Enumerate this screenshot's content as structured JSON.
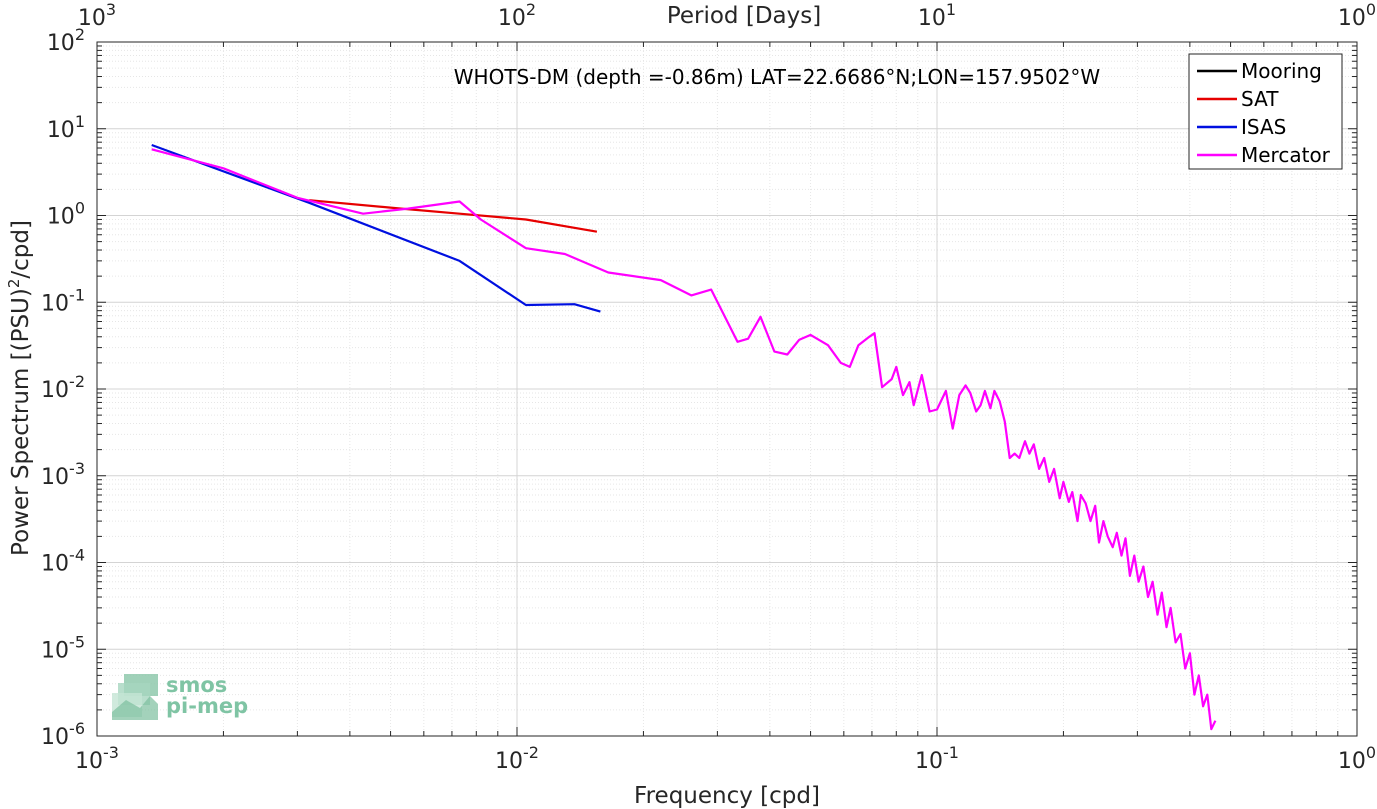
{
  "chart_data": {
    "type": "line",
    "title": "WHOTS-DM (depth =-0.86m) LAT=22.6686°N;LON=157.9502°W",
    "xlabel": "Frequency [cpd]",
    "ylabel": "Power Spectrum [(PSU)",
    "ylabel_sup": "2",
    "ylabel_tail": "/cpd]",
    "top_xlabel": "Period [Days]",
    "xscale": "log",
    "yscale": "log",
    "xlim": [
      0.001,
      1
    ],
    "ylim": [
      1e-06,
      100
    ],
    "grid": true,
    "legend_position": "top-right",
    "x_ticks": [
      {
        "value": 0.001,
        "base": "10",
        "exp": "-3"
      },
      {
        "value": 0.01,
        "base": "10",
        "exp": "-2"
      },
      {
        "value": 0.1,
        "base": "10",
        "exp": "-1"
      },
      {
        "value": 1,
        "base": "10",
        "exp": "0"
      }
    ],
    "y_ticks": [
      {
        "value": 1e-06,
        "base": "10",
        "exp": "-6"
      },
      {
        "value": 1e-05,
        "base": "10",
        "exp": "-5"
      },
      {
        "value": 0.0001,
        "base": "10",
        "exp": "-4"
      },
      {
        "value": 0.001,
        "base": "10",
        "exp": "-3"
      },
      {
        "value": 0.01,
        "base": "10",
        "exp": "-2"
      },
      {
        "value": 0.1,
        "base": "10",
        "exp": "-1"
      },
      {
        "value": 1,
        "base": "10",
        "exp": "0"
      },
      {
        "value": 10,
        "base": "10",
        "exp": "1"
      },
      {
        "value": 100,
        "base": "10",
        "exp": "2"
      }
    ],
    "top_ticks": [
      {
        "value": 0.001,
        "base": "10",
        "exp": "3"
      },
      {
        "value": 0.01,
        "base": "10",
        "exp": "2"
      },
      {
        "value": 0.1,
        "base": "10",
        "exp": "1"
      },
      {
        "value": 1,
        "base": "10",
        "exp": "0"
      }
    ],
    "series": [
      {
        "name": "Mooring",
        "color": "#000000",
        "x": [],
        "y": []
      },
      {
        "name": "SAT",
        "color": "#e60000",
        "x": [
          0.0032,
          0.0053,
          0.0073,
          0.0105,
          0.0155
        ],
        "y": [
          1.5,
          1.2,
          1.05,
          0.9,
          0.65
        ]
      },
      {
        "name": "ISAS",
        "color": "#0010e0",
        "x": [
          0.00135,
          0.0032,
          0.0073,
          0.0105,
          0.0137,
          0.0158
        ],
        "y": [
          6.5,
          1.4,
          0.3,
          0.093,
          0.095,
          0.078
        ]
      },
      {
        "name": "Mercator",
        "color": "#ff00ff",
        "x": [
          0.00135,
          0.002,
          0.003,
          0.0043,
          0.0055,
          0.0073,
          0.0082,
          0.0105,
          0.013,
          0.0165,
          0.022,
          0.026,
          0.029,
          0.0335,
          0.0355,
          0.038,
          0.041,
          0.044,
          0.047,
          0.05,
          0.055,
          0.059,
          0.062,
          0.065,
          0.069,
          0.071,
          0.074,
          0.078,
          0.08,
          0.083,
          0.086,
          0.088,
          0.092,
          0.096,
          0.1,
          0.105,
          0.109,
          0.113,
          0.117,
          0.12,
          0.124,
          0.127,
          0.13,
          0.134,
          0.137,
          0.141,
          0.145,
          0.149,
          0.153,
          0.157,
          0.162,
          0.166,
          0.17,
          0.175,
          0.18,
          0.185,
          0.19,
          0.196,
          0.2,
          0.206,
          0.21,
          0.216,
          0.22,
          0.226,
          0.232,
          0.238,
          0.243,
          0.249,
          0.255,
          0.262,
          0.268,
          0.275,
          0.281,
          0.288,
          0.295,
          0.302,
          0.31,
          0.318,
          0.326,
          0.335,
          0.343,
          0.352,
          0.36,
          0.37,
          0.38,
          0.39,
          0.4,
          0.41,
          0.42,
          0.43,
          0.44,
          0.45,
          0.46
        ],
        "y": [
          5.8,
          3.5,
          1.6,
          1.05,
          1.2,
          1.45,
          0.9,
          0.42,
          0.36,
          0.22,
          0.18,
          0.12,
          0.14,
          0.035,
          0.038,
          0.068,
          0.027,
          0.025,
          0.037,
          0.042,
          0.032,
          0.02,
          0.018,
          0.032,
          0.04,
          0.044,
          0.0105,
          0.013,
          0.018,
          0.0085,
          0.012,
          0.0065,
          0.0145,
          0.0055,
          0.0058,
          0.0095,
          0.0035,
          0.0085,
          0.011,
          0.009,
          0.0055,
          0.0065,
          0.0095,
          0.006,
          0.0095,
          0.0072,
          0.0042,
          0.0016,
          0.0018,
          0.0016,
          0.0025,
          0.0018,
          0.0023,
          0.0012,
          0.0016,
          0.00085,
          0.0012,
          0.00055,
          0.00085,
          0.0005,
          0.00065,
          0.0003,
          0.0006,
          0.00048,
          0.0003,
          0.00045,
          0.00017,
          0.0003,
          0.0002,
          0.00015,
          0.00022,
          0.00012,
          0.00019,
          7e-05,
          0.00012,
          6e-05,
          9e-05,
          4e-05,
          6e-05,
          2.5e-05,
          4.5e-05,
          1.8e-05,
          3e-05,
          1.2e-05,
          1.5e-05,
          6e-06,
          9e-06,
          3e-06,
          5e-06,
          2.2e-06,
          3e-06,
          1.2e-06,
          1.5e-06
        ]
      }
    ]
  },
  "logo": {
    "line1": "smos",
    "line2": "pi-mep"
  }
}
